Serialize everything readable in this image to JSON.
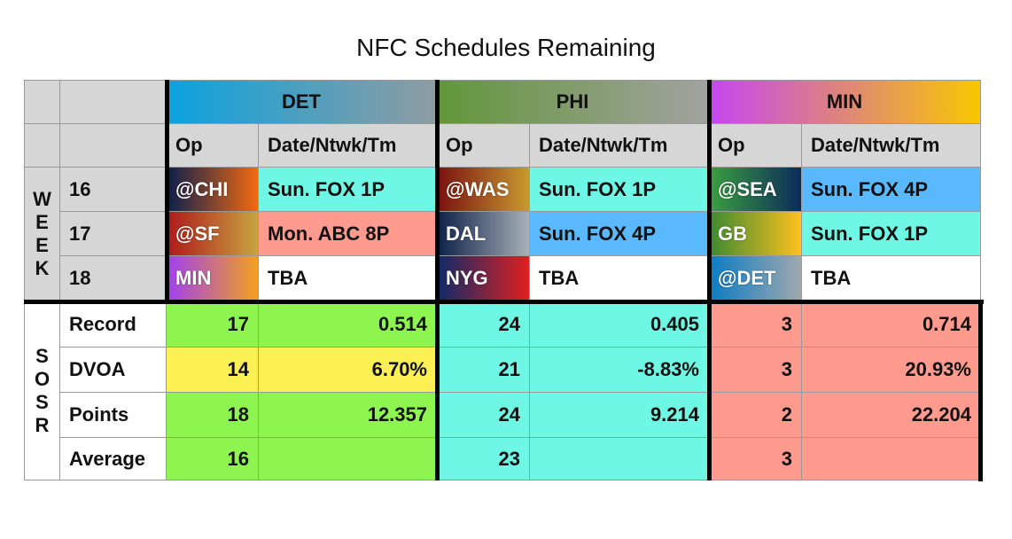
{
  "title": "NFC Schedules Remaining",
  "teams": [
    "DET",
    "PHI",
    "MIN"
  ],
  "subheaders": [
    "Op",
    "Date/Ntwk/Tm"
  ],
  "week_label": "WEEK",
  "weeks": [
    {
      "week": 16,
      "games": [
        [
          "@CHI",
          "Sun. FOX 1P"
        ],
        [
          "@WAS",
          "Sun. FOX 1P"
        ],
        [
          "@SEA",
          "Sun. FOX 4P"
        ]
      ]
    },
    {
      "week": 17,
      "games": [
        [
          "@SF",
          "Mon. ABC 8P"
        ],
        [
          "DAL",
          "Sun. FOX 4P"
        ],
        [
          "GB",
          "Sun. FOX 1P"
        ]
      ]
    },
    {
      "week": 18,
      "games": [
        [
          "MIN",
          "TBA"
        ],
        [
          "NYG",
          "TBA"
        ],
        [
          "@DET",
          "TBA"
        ]
      ]
    }
  ],
  "sosr_label": "SOSR",
  "sosr": [
    {
      "label": "Record",
      "teams": [
        [
          17,
          0.514
        ],
        [
          24,
          0.405
        ],
        [
          3,
          0.714
        ]
      ]
    },
    {
      "label": "DVOA",
      "teams": [
        [
          14,
          "6.70%"
        ],
        [
          21,
          "-8.83%"
        ],
        [
          3,
          "20.93%"
        ]
      ]
    },
    {
      "label": "Points",
      "teams": [
        [
          18,
          12.357
        ],
        [
          24,
          9.214
        ],
        [
          2,
          22.204
        ]
      ]
    },
    {
      "label": "Average",
      "teams": [
        [
          16
        ],
        [
          23
        ],
        [
          3
        ]
      ]
    }
  ]
}
